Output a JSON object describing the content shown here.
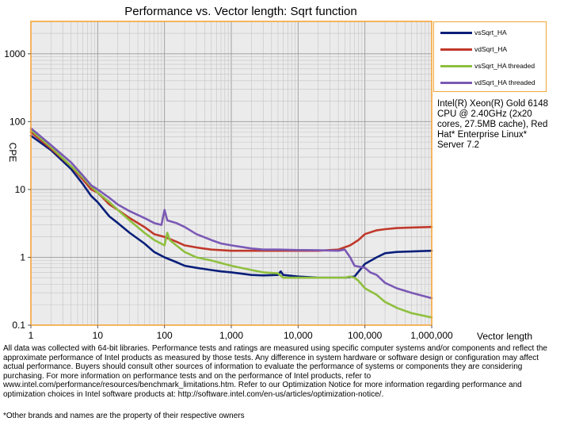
{
  "chart_data": {
    "type": "line",
    "title": "Performance vs. Vector length: Sqrt function",
    "xlabel": "Vector length",
    "ylabel": "CPE",
    "x_scale": "log",
    "y_scale": "log",
    "xlim": [
      1,
      1000000
    ],
    "ylim": [
      0.1,
      3000
    ],
    "x_ticks": [
      "1",
      "10",
      "100",
      "1,000",
      "10,000",
      "100,000",
      "1,000,000"
    ],
    "y_ticks": [
      "0.1",
      "1",
      "10",
      "100",
      "1000"
    ],
    "grid": true,
    "legend_position": "top-right",
    "series": [
      {
        "name": "vsSqrt_HA",
        "color": "#0a1f7a",
        "points": [
          [
            1,
            62
          ],
          [
            2,
            38
          ],
          [
            4,
            20
          ],
          [
            6,
            12
          ],
          [
            8,
            8
          ],
          [
            10,
            6.5
          ],
          [
            15,
            4
          ],
          [
            20,
            3.2
          ],
          [
            30,
            2.3
          ],
          [
            50,
            1.6
          ],
          [
            70,
            1.2
          ],
          [
            100,
            1.0
          ],
          [
            150,
            0.85
          ],
          [
            200,
            0.75
          ],
          [
            300,
            0.7
          ],
          [
            500,
            0.65
          ],
          [
            700,
            0.62
          ],
          [
            1000,
            0.6
          ],
          [
            1500,
            0.57
          ],
          [
            2000,
            0.55
          ],
          [
            3000,
            0.54
          ],
          [
            5000,
            0.55
          ],
          [
            5500,
            0.62
          ],
          [
            6000,
            0.55
          ],
          [
            10000,
            0.52
          ],
          [
            20000,
            0.5
          ],
          [
            50000,
            0.5
          ],
          [
            70000,
            0.52
          ],
          [
            100000,
            0.8
          ],
          [
            150000,
            1.0
          ],
          [
            200000,
            1.15
          ],
          [
            300000,
            1.2
          ],
          [
            500000,
            1.22
          ],
          [
            1000000,
            1.25
          ]
        ]
      },
      {
        "name": "vdSqrt_HA",
        "color": "#c0392b",
        "points": [
          [
            1,
            70
          ],
          [
            2,
            40
          ],
          [
            4,
            22
          ],
          [
            6,
            14
          ],
          [
            8,
            10
          ],
          [
            10,
            9
          ],
          [
            15,
            6
          ],
          [
            20,
            5
          ],
          [
            30,
            3.8
          ],
          [
            50,
            2.8
          ],
          [
            70,
            2.2
          ],
          [
            100,
            2.0
          ],
          [
            150,
            1.7
          ],
          [
            200,
            1.5
          ],
          [
            300,
            1.4
          ],
          [
            500,
            1.3
          ],
          [
            1000,
            1.25
          ],
          [
            2000,
            1.25
          ],
          [
            3000,
            1.25
          ],
          [
            5000,
            1.25
          ],
          [
            10000,
            1.25
          ],
          [
            20000,
            1.25
          ],
          [
            40000,
            1.3
          ],
          [
            60000,
            1.5
          ],
          [
            80000,
            1.8
          ],
          [
            100000,
            2.2
          ],
          [
            150000,
            2.5
          ],
          [
            200000,
            2.6
          ],
          [
            300000,
            2.7
          ],
          [
            500000,
            2.75
          ],
          [
            1000000,
            2.8
          ]
        ]
      },
      {
        "name": "vsSqrt_HA threaded",
        "color": "#8fbf3f",
        "points": [
          [
            1,
            75
          ],
          [
            2,
            42
          ],
          [
            4,
            22
          ],
          [
            6,
            15
          ],
          [
            8,
            11
          ],
          [
            10,
            9
          ],
          [
            15,
            6.5
          ],
          [
            20,
            5
          ],
          [
            30,
            3.5
          ],
          [
            50,
            2.3
          ],
          [
            70,
            1.8
          ],
          [
            100,
            1.5
          ],
          [
            110,
            2.3
          ],
          [
            120,
            1.8
          ],
          [
            150,
            1.5
          ],
          [
            200,
            1.2
          ],
          [
            300,
            1.0
          ],
          [
            500,
            0.9
          ],
          [
            1000,
            0.75
          ],
          [
            2000,
            0.65
          ],
          [
            3000,
            0.6
          ],
          [
            5000,
            0.58
          ],
          [
            6000,
            0.5
          ],
          [
            10000,
            0.5
          ],
          [
            20000,
            0.5
          ],
          [
            50000,
            0.5
          ],
          [
            60000,
            0.52
          ],
          [
            70000,
            0.5
          ],
          [
            80000,
            0.45
          ],
          [
            100000,
            0.35
          ],
          [
            150000,
            0.28
          ],
          [
            200000,
            0.22
          ],
          [
            300000,
            0.18
          ],
          [
            500000,
            0.15
          ],
          [
            1000000,
            0.13
          ]
        ]
      },
      {
        "name": "vdSqrt_HA threaded",
        "color": "#7b59b5",
        "points": [
          [
            1,
            80
          ],
          [
            2,
            45
          ],
          [
            4,
            25
          ],
          [
            6,
            16
          ],
          [
            8,
            11.5
          ],
          [
            10,
            10
          ],
          [
            15,
            7.5
          ],
          [
            20,
            6
          ],
          [
            30,
            4.8
          ],
          [
            50,
            3.8
          ],
          [
            70,
            3.2
          ],
          [
            90,
            3.0
          ],
          [
            100,
            5.0
          ],
          [
            110,
            3.5
          ],
          [
            150,
            3.2
          ],
          [
            200,
            2.8
          ],
          [
            300,
            2.2
          ],
          [
            500,
            1.8
          ],
          [
            700,
            1.6
          ],
          [
            1000,
            1.5
          ],
          [
            2000,
            1.35
          ],
          [
            3000,
            1.3
          ],
          [
            5000,
            1.3
          ],
          [
            10000,
            1.28
          ],
          [
            20000,
            1.27
          ],
          [
            40000,
            1.25
          ],
          [
            50000,
            1.3
          ],
          [
            60000,
            1.0
          ],
          [
            70000,
            0.75
          ],
          [
            100000,
            0.7
          ],
          [
            120000,
            0.6
          ],
          [
            150000,
            0.55
          ],
          [
            200000,
            0.42
          ],
          [
            300000,
            0.35
          ],
          [
            500000,
            0.3
          ],
          [
            1000000,
            0.25
          ]
        ]
      }
    ]
  },
  "cpu_info": "Intel(R) Xeon(R) Gold 6148 CPU @ 2.40GHz (2x20 cores, 27.5MB cache), Red Hat* Enterprise Linux* Server 7.2",
  "disclaimer": "All data was collected with 64-bit libraries. Performance tests and ratings are measured using specific computer systems and/or components and reflect the approximate performance of Intel products as measured by those tests. Any difference in system hardware or software design or configuration may affect actual performance. Buyers should consult other sources of information to evaluate the performance of systems or components they are considering purchasing. For more information on performance tests and on the performance of Intel products, refer to www.intel.com/performance/resources/benchmark_limitations.htm. Refer to our Optimization Notice for more information regarding performance and optimization choices in Intel software products at: http://software.intel.com/en-us/articles/optimization-notice/.",
  "footnote": "*Other brands and names are the property of their respective owners"
}
